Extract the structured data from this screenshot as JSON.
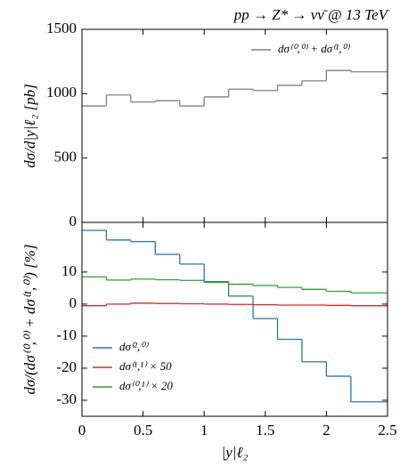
{
  "chart_data": [
    {
      "type": "histogram",
      "title": "pp → Z* → νν̄ @ 13 TeV",
      "ylabel": "dσ/d|y|ℓ₂ [pb]",
      "bins": [
        0,
        0.2,
        0.4,
        0.6,
        0.8,
        1.0,
        1.2,
        1.4,
        1.6,
        1.8,
        2.0,
        2.2,
        2.5
      ],
      "series": [
        {
          "name": "dσ⁽⁰,⁰⁾ + dσ⁽¹,⁰⁾",
          "color": "#7f7f7f",
          "values": [
            905,
            990,
            935,
            945,
            905,
            975,
            1035,
            1025,
            1065,
            1100,
            1180,
            1170
          ]
        }
      ],
      "xlim": [
        0,
        2.5
      ],
      "ylim": [
        0,
        1500
      ],
      "yticks": [
        0,
        500,
        1000,
        1500
      ],
      "legend": "upper right"
    },
    {
      "type": "histogram",
      "ylabel": "dσ/(dσ⁽⁰,⁰⁾ + dσ⁽¹,⁰⁾) [%]",
      "xlabel": "|y|ℓ₂",
      "bins": [
        0,
        0.2,
        0.4,
        0.6,
        0.8,
        1.0,
        1.2,
        1.4,
        1.6,
        1.8,
        2.0,
        2.2,
        2.5
      ],
      "series": [
        {
          "name": "dσ⁽²,⁰⁾",
          "color": "#1f77b4",
          "values": [
            23,
            20,
            19.5,
            15.5,
            12.5,
            7,
            2.5,
            -4.5,
            -11,
            -18,
            -22.5,
            -30.5
          ]
        },
        {
          "name": "dσ⁽¹,¹⁾ × 50",
          "color": "#d62728",
          "values": [
            -0.5,
            0,
            0.3,
            0.2,
            0.1,
            0,
            -0.1,
            -0.2,
            -0.3,
            -0.3,
            -0.4,
            -0.5
          ]
        },
        {
          "name": "dσ⁽⁰,¹⁾ × 20",
          "color": "#2ca02c",
          "values": [
            8.5,
            7.5,
            7.8,
            7.6,
            7.4,
            6.8,
            6.2,
            5.8,
            5.2,
            4.6,
            4.0,
            3.5
          ]
        }
      ],
      "xlim": [
        0,
        2.5
      ],
      "xticks": [
        0,
        0.5,
        1.0,
        1.5,
        2.0,
        2.5
      ],
      "ylim": [
        -35,
        25.5
      ],
      "yticks": [
        -30,
        -20,
        -10,
        0,
        10
      ],
      "legend": "lower left"
    }
  ]
}
